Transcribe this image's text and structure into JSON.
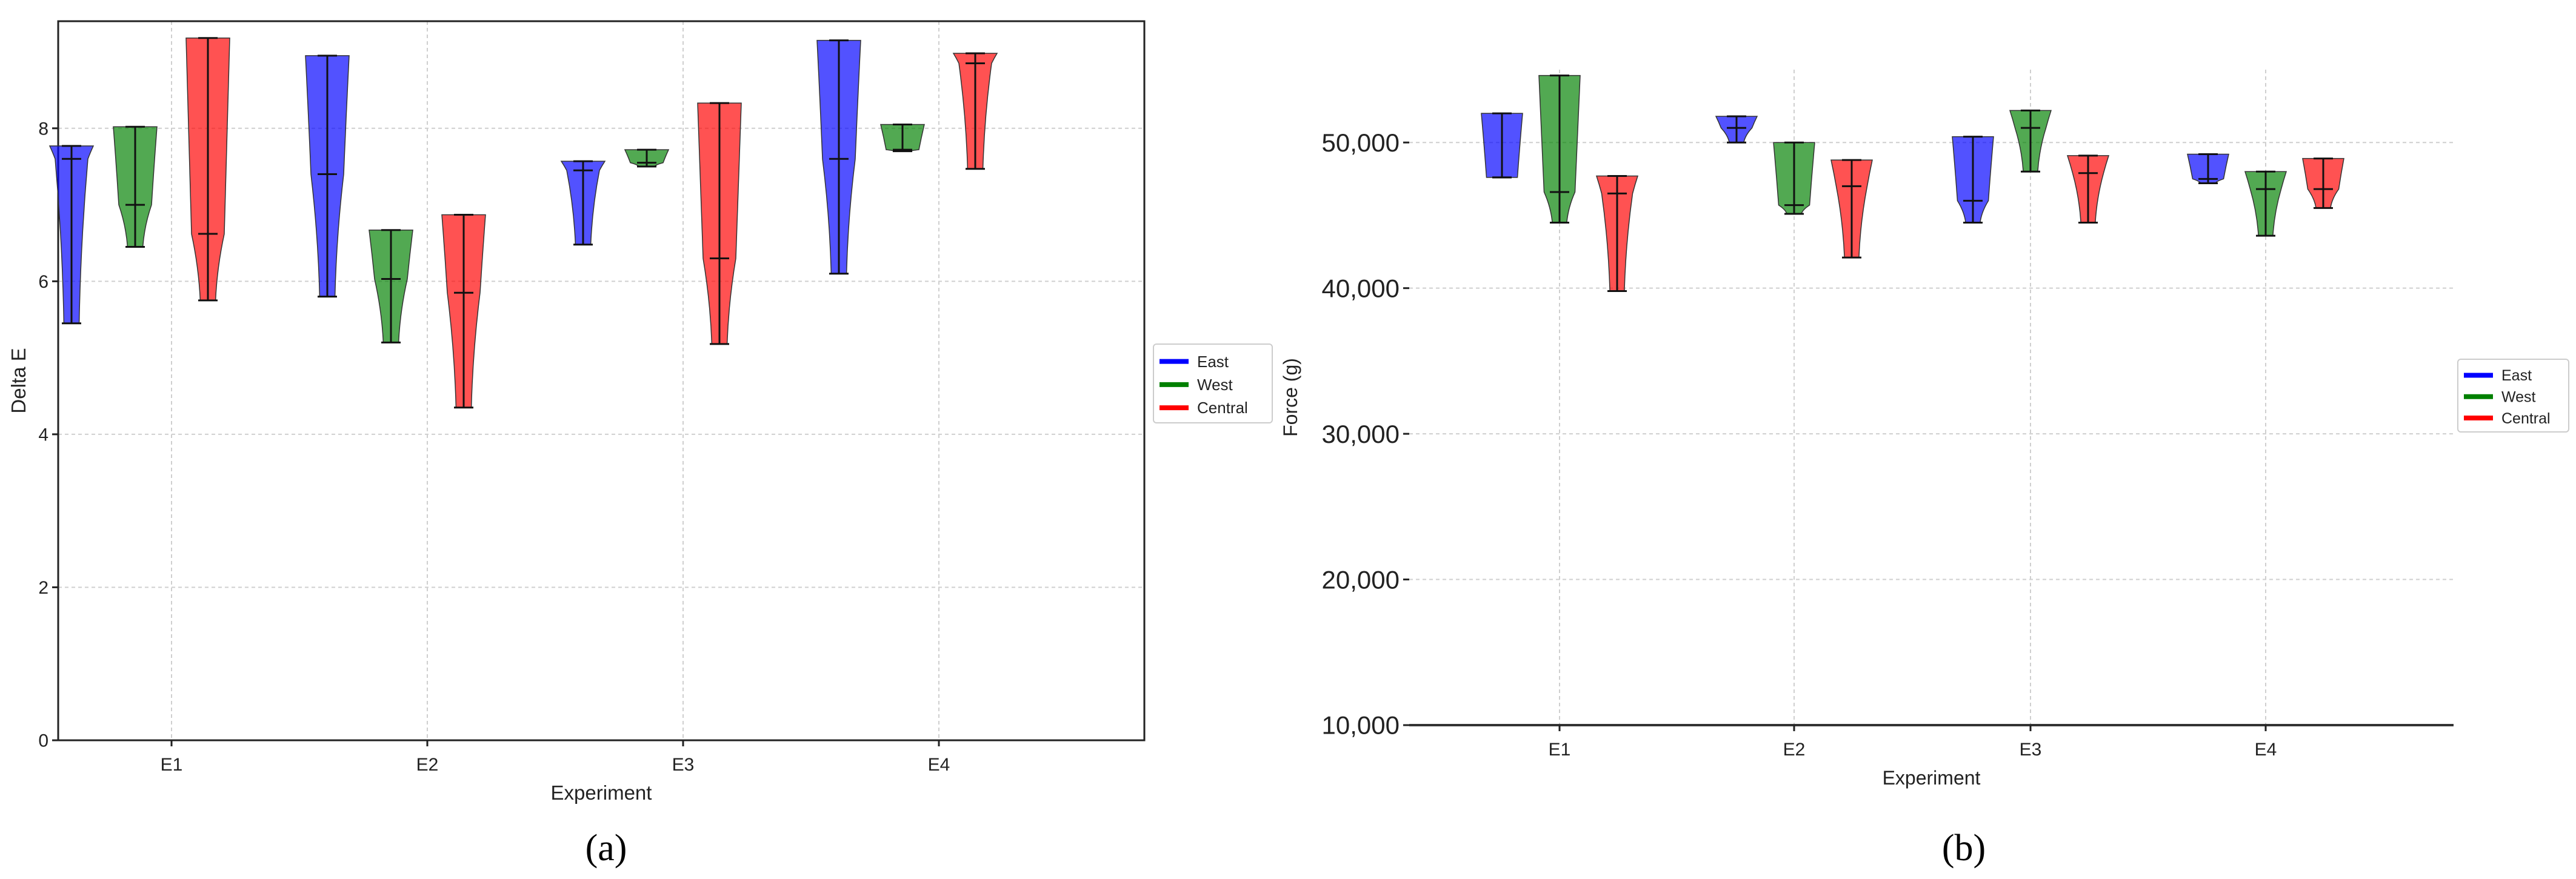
{
  "chart_data": [
    {
      "panel_label": "(a)",
      "type": "violin",
      "categories": [
        "E1",
        "E2",
        "E3",
        "E4"
      ],
      "xlabel": "Experiment",
      "ylabel": "Delta E",
      "ylim": [
        0,
        9.4
      ],
      "yticks": [
        0,
        2,
        4,
        6,
        8
      ],
      "ytick_labels": [
        "0",
        "2",
        "4",
        "6",
        "8"
      ],
      "grid": true,
      "legend_position": "right",
      "series": [
        {
          "name": "East",
          "color": "#0000ff",
          "values": [
            {
              "category": "E1",
              "min": 5.45,
              "median": 7.6,
              "max": 7.77
            },
            {
              "category": "E2",
              "min": 5.8,
              "median": 7.4,
              "max": 8.95
            },
            {
              "category": "E3",
              "min": 6.48,
              "median": 7.45,
              "max": 7.57
            },
            {
              "category": "E4",
              "min": 6.1,
              "median": 7.6,
              "max": 9.15
            }
          ]
        },
        {
          "name": "West",
          "color": "#008000",
          "values": [
            {
              "category": "E1",
              "min": 6.45,
              "median": 7.0,
              "max": 8.02
            },
            {
              "category": "E2",
              "min": 5.2,
              "median": 6.03,
              "max": 6.67
            },
            {
              "category": "E3",
              "min": 7.5,
              "median": 7.55,
              "max": 7.72
            },
            {
              "category": "E4",
              "min": 7.7,
              "median": 7.72,
              "max": 8.05
            }
          ]
        },
        {
          "name": "Central",
          "color": "#ff0000",
          "values": [
            {
              "category": "E1",
              "min": 5.75,
              "median": 6.62,
              "max": 9.18
            },
            {
              "category": "E2",
              "min": 4.35,
              "median": 5.85,
              "max": 6.87
            },
            {
              "category": "E3",
              "min": 5.18,
              "median": 6.3,
              "max": 8.33
            },
            {
              "category": "E4",
              "min": 7.47,
              "median": 8.85,
              "max": 8.98
            }
          ]
        }
      ]
    },
    {
      "panel_label": "(b)",
      "type": "violin",
      "categories": [
        "E1",
        "E2",
        "E3",
        "E4"
      ],
      "xlabel": "Experiment",
      "ylabel": "Force (g)",
      "ylim": [
        10000,
        55000
      ],
      "yticks": [
        10000,
        20000,
        30000,
        40000,
        50000
      ],
      "ytick_labels": [
        "10,000",
        "20,000",
        "30,000",
        "40,000",
        "50,000"
      ],
      "grid": true,
      "legend_position": "right",
      "series": [
        {
          "name": "East",
          "color": "#0000ff",
          "values": [
            {
              "category": "E1",
              "min": 47600,
              "median": 47600,
              "max": 52000
            },
            {
              "category": "E2",
              "min": 50000,
              "median": 51000,
              "max": 51800
            },
            {
              "category": "E3",
              "min": 44500,
              "median": 46000,
              "max": 50400
            },
            {
              "category": "E4",
              "min": 47200,
              "median": 47500,
              "max": 49200
            }
          ]
        },
        {
          "name": "West",
          "color": "#008000",
          "values": [
            {
              "category": "E1",
              "min": 44500,
              "median": 46600,
              "max": 54600
            },
            {
              "category": "E2",
              "min": 45100,
              "median": 45700,
              "max": 50000
            },
            {
              "category": "E3",
              "min": 48000,
              "median": 51000,
              "max": 52200
            },
            {
              "category": "E4",
              "min": 43600,
              "median": 46800,
              "max": 48000
            }
          ]
        },
        {
          "name": "Central",
          "color": "#ff0000",
          "values": [
            {
              "category": "E1",
              "min": 39800,
              "median": 46500,
              "max": 47700
            },
            {
              "category": "E2",
              "min": 42100,
              "median": 47000,
              "max": 48800
            },
            {
              "category": "E3",
              "min": 44500,
              "median": 47900,
              "max": 49100
            },
            {
              "category": "E4",
              "min": 45500,
              "median": 46800,
              "max": 48900
            }
          ]
        }
      ]
    }
  ]
}
